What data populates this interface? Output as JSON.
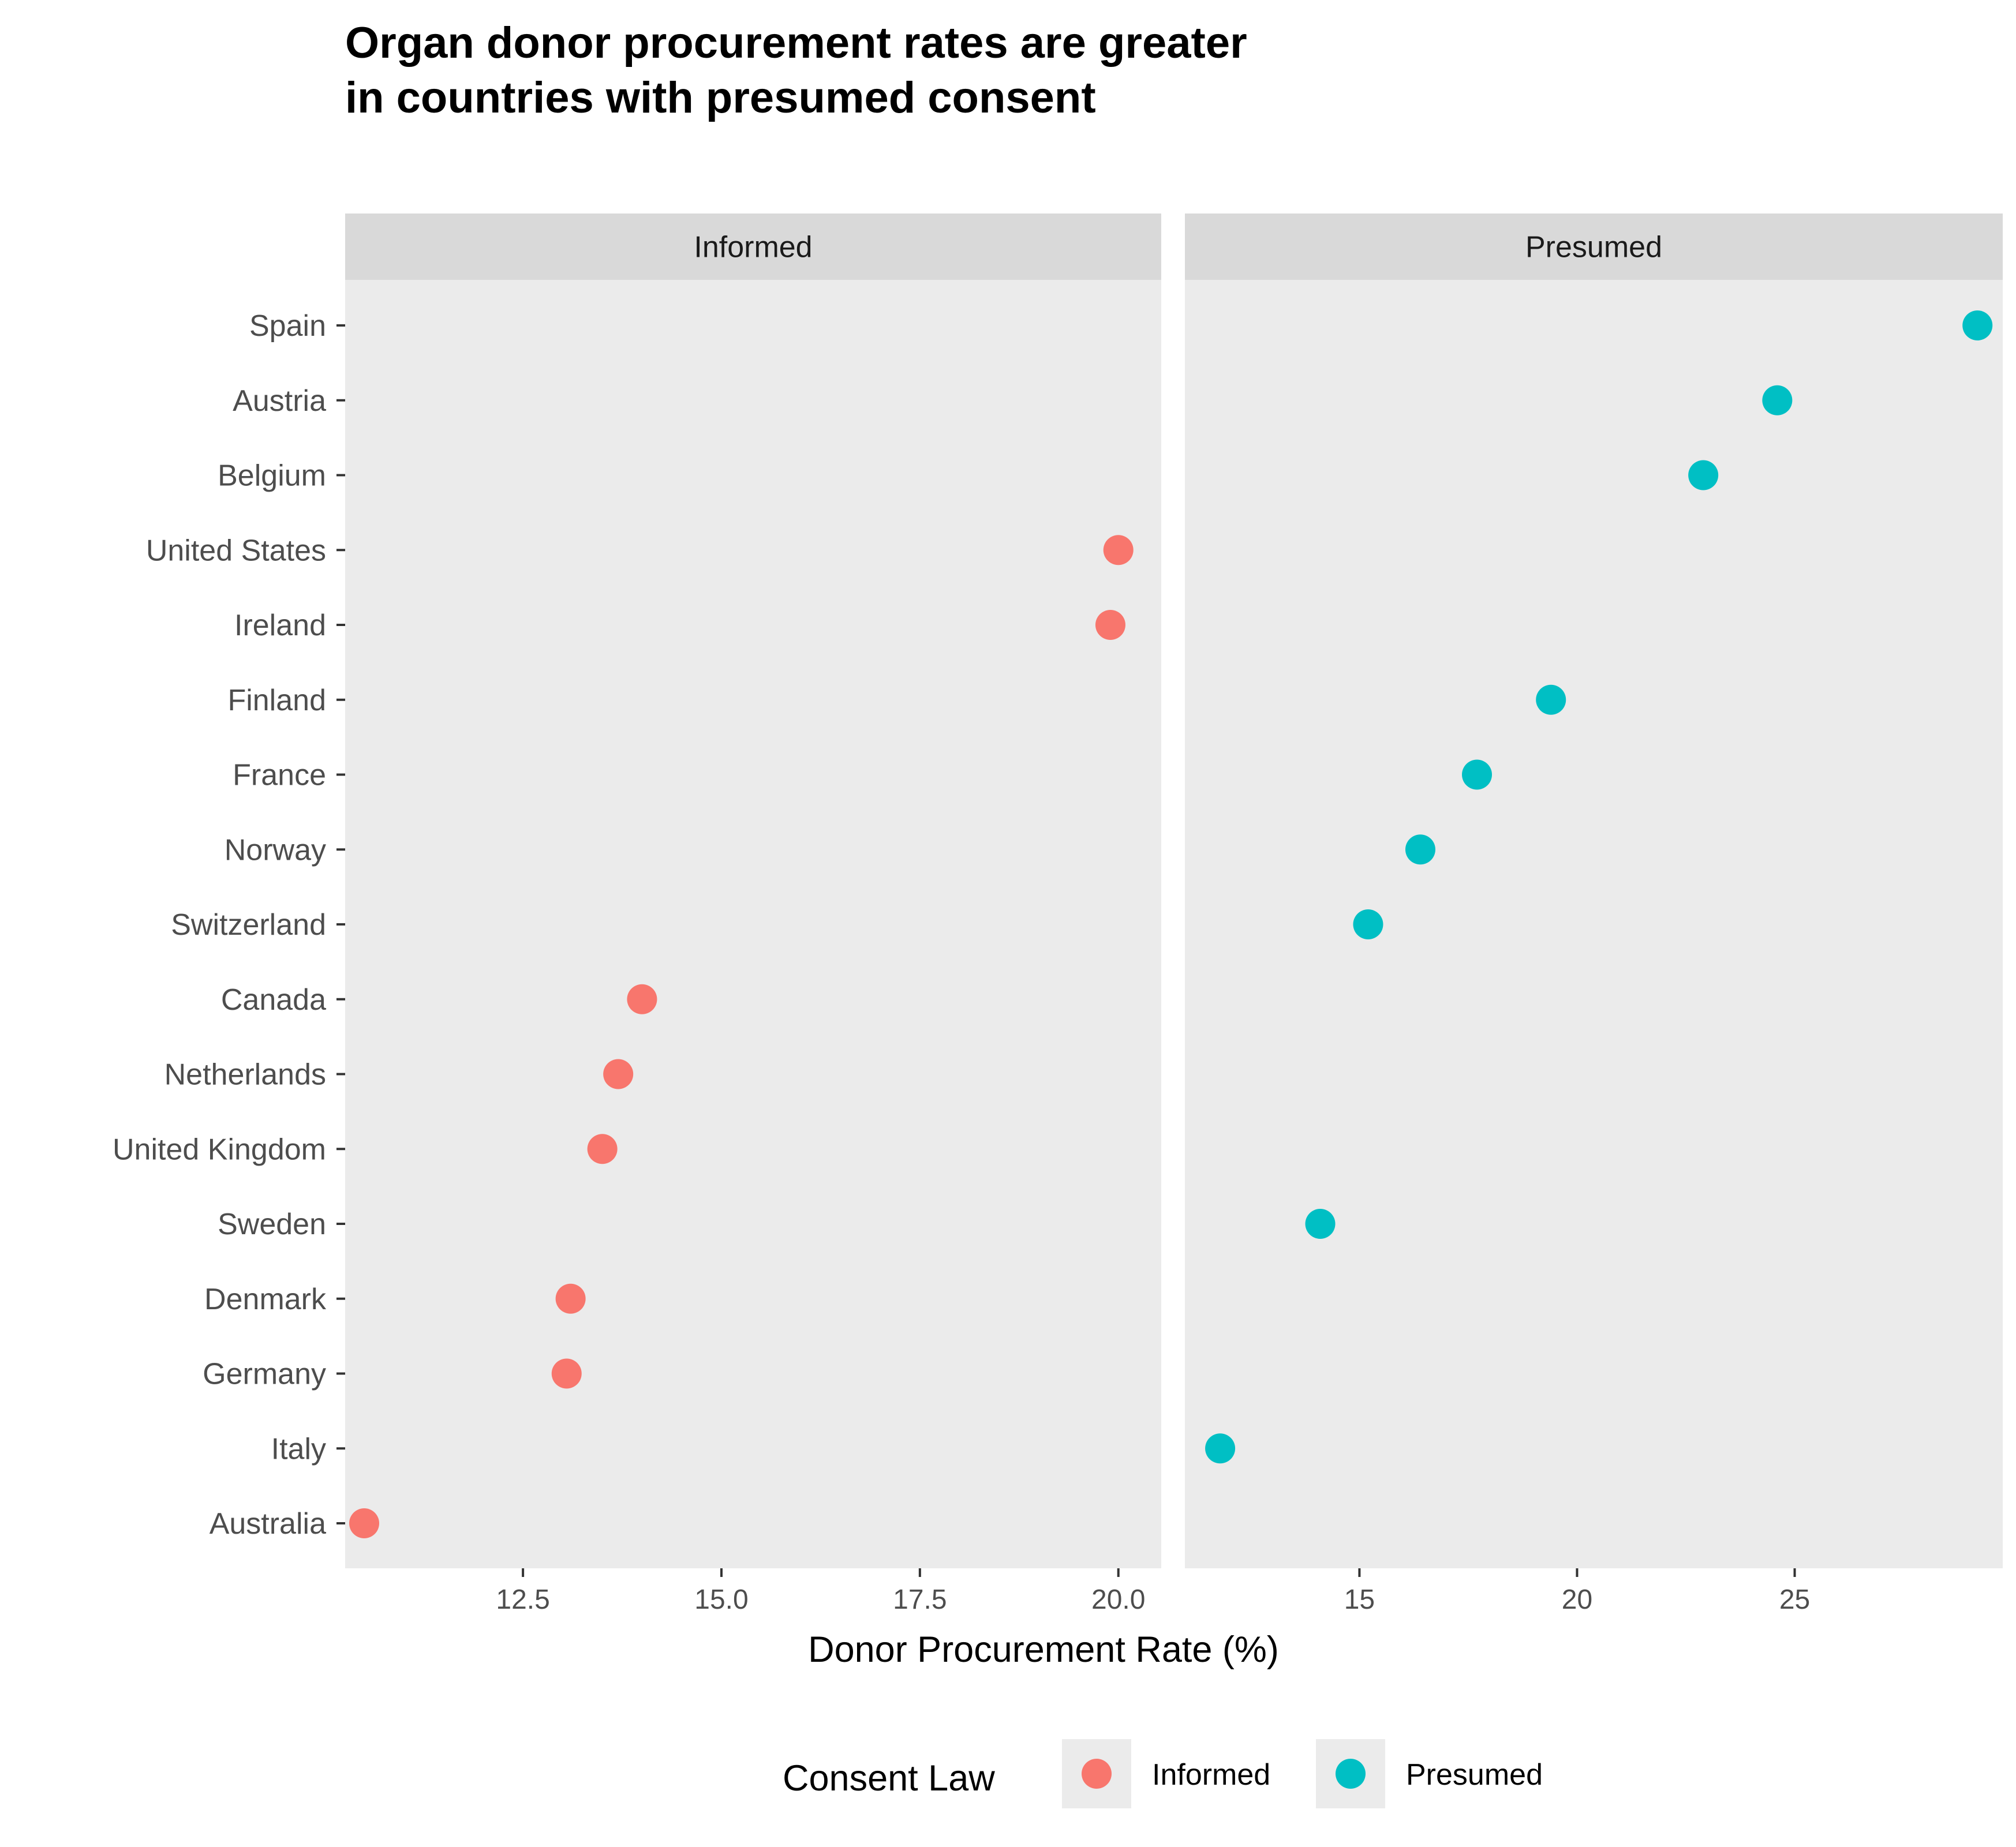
{
  "chart_data": {
    "type": "scatter",
    "title_lines": [
      "Organ donor procurement rates are greater",
      "in countries with presumed consent"
    ],
    "xlabel": "Donor Procurement Rate (%)",
    "ylabel": "",
    "grid": false,
    "legend_position": "bottom",
    "legend": {
      "title": "Consent Law",
      "entries": [
        {
          "label": "Informed",
          "color": "#F8766D"
        },
        {
          "label": "Presumed",
          "color": "#00BFC4"
        }
      ]
    },
    "countries": [
      "Spain",
      "Austria",
      "Belgium",
      "United States",
      "Ireland",
      "Finland",
      "France",
      "Norway",
      "Switzerland",
      "Canada",
      "Netherlands",
      "United Kingdom",
      "Sweden",
      "Denmark",
      "Germany",
      "Italy",
      "Australia"
    ],
    "panels": [
      {
        "label": "Informed",
        "color": "#F8766D",
        "xlim": [
          10.26,
          20.54
        ],
        "xticks": [
          12.5,
          15.0,
          17.5,
          20.0
        ],
        "xtick_labels": [
          "12.5",
          "15.0",
          "17.5",
          "20.0"
        ],
        "points": [
          {
            "country": "United States",
            "x": 20.0
          },
          {
            "country": "Ireland",
            "x": 19.9
          },
          {
            "country": "Canada",
            "x": 14.0
          },
          {
            "country": "Netherlands",
            "x": 13.7
          },
          {
            "country": "United Kingdom",
            "x": 13.5
          },
          {
            "country": "Denmark",
            "x": 13.1
          },
          {
            "country": "Germany",
            "x": 13.05
          },
          {
            "country": "Australia",
            "x": 10.5
          }
        ]
      },
      {
        "label": "Presumed",
        "color": "#00BFC4",
        "xlim": [
          10.99,
          29.78
        ],
        "xticks": [
          15,
          20,
          25
        ],
        "xtick_labels": [
          "15",
          "20",
          "25"
        ],
        "points": [
          {
            "country": "Spain",
            "x": 29.2
          },
          {
            "country": "Austria",
            "x": 24.6
          },
          {
            "country": "Belgium",
            "x": 22.9
          },
          {
            "country": "Finland",
            "x": 19.4
          },
          {
            "country": "France",
            "x": 17.7
          },
          {
            "country": "Norway",
            "x": 16.4
          },
          {
            "country": "Switzerland",
            "x": 15.2
          },
          {
            "country": "Sweden",
            "x": 14.1
          },
          {
            "country": "Italy",
            "x": 11.8
          }
        ]
      }
    ]
  }
}
